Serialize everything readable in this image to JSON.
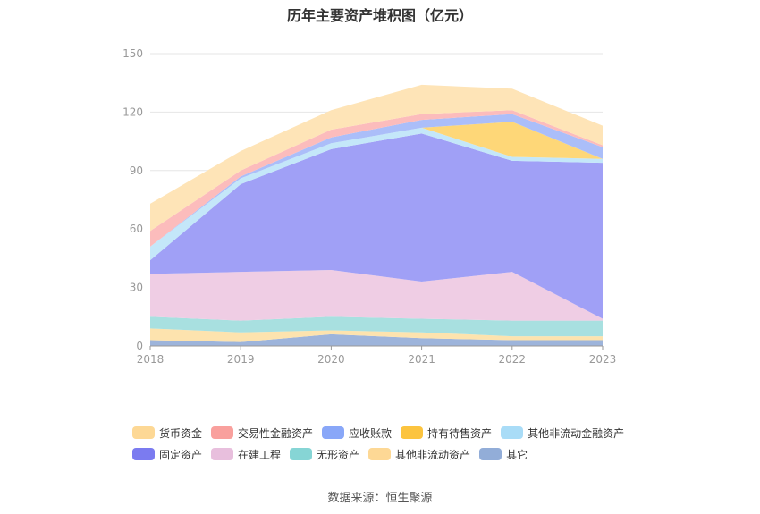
{
  "title": "历年主要资产堆积图（亿元）",
  "source": "数据来源：恒生聚源",
  "legend_rows": [
    [
      "货币资金",
      "交易性金融资产",
      "应收账款",
      "持有待售资产",
      "其他非流动金融资产"
    ],
    [
      "固定资产",
      "在建工程",
      "无形资产",
      "其他非流动资产",
      "其它"
    ]
  ],
  "chart_data": {
    "type": "area",
    "stacked": true,
    "categories": [
      "2018",
      "2019",
      "2020",
      "2021",
      "2022",
      "2023"
    ],
    "ylim": [
      0,
      150
    ],
    "yticks": [
      0,
      30,
      60,
      90,
      120,
      150
    ],
    "grid": true,
    "legend_position": "bottom",
    "series": [
      {
        "name": "其它",
        "color": "#9db4db",
        "values": [
          3,
          2,
          6,
          4,
          3,
          3
        ]
      },
      {
        "name": "其他非流动资产",
        "color": "#fde3ae",
        "values": [
          6,
          5,
          2,
          3,
          2,
          2
        ]
      },
      {
        "name": "无形资产",
        "color": "#a8e0e0",
        "values": [
          6,
          6,
          7,
          7,
          8,
          8
        ]
      },
      {
        "name": "在建工程",
        "color": "#efcde4",
        "values": [
          22,
          25,
          24,
          19,
          25,
          1
        ]
      },
      {
        "name": "固定资产",
        "color": "#a0a0f6",
        "values": [
          7,
          45,
          62,
          76,
          57,
          80
        ]
      },
      {
        "name": "其他非流动金融资产",
        "color": "#c4e7f9",
        "values": [
          7,
          3,
          3,
          3,
          2,
          2
        ]
      },
      {
        "name": "持有待售资产",
        "color": "#fed778",
        "values": [
          0,
          0,
          0,
          0,
          18,
          0
        ]
      },
      {
        "name": "应收账款",
        "color": "#abbef9",
        "values": [
          0,
          1,
          3,
          4,
          4,
          6
        ]
      },
      {
        "name": "交易性金融资产",
        "color": "#fcbcbc",
        "values": [
          8,
          3,
          4,
          3,
          2,
          1
        ]
      },
      {
        "name": "货币资金",
        "color": "#fee4b7",
        "values": [
          14,
          10,
          10,
          15,
          11,
          10
        ]
      }
    ]
  },
  "legend_colors": {
    "货币资金": "#fdd895",
    "交易性金融资产": "#f9a09d",
    "应收账款": "#89a7f8",
    "持有待售资产": "#fcc43f",
    "其他非流动金融资产": "#a9dcf7",
    "固定资产": "#7b7bf0",
    "在建工程": "#e8bfdd",
    "无形资产": "#86d5d5",
    "其他非流动资产": "#fdd895",
    "其它": "#92add8"
  }
}
